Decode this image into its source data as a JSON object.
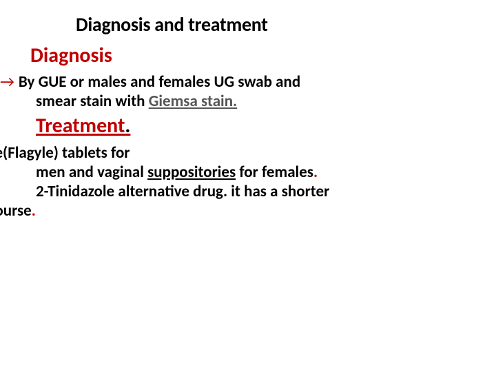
{
  "colors": {
    "accent_red": "#c00000",
    "text_black": "#000000",
    "muted_gray": "#555555",
    "background": "#ffffff"
  },
  "typography": {
    "title_fontsize": 28,
    "heading_fontsize": 30,
    "body_fontsize": 23,
    "font_family": "Calibri",
    "weight": 700
  },
  "title": "Diagnosis and treatment",
  "diagnosis": {
    "heading": "Diagnosis",
    "arrow": "→",
    "line1_pre": "By GUE  or males and females UG swab and",
    "line2_pre": "smear stain with ",
    "giemsa": "Giemsa stain."
  },
  "treatment": {
    "heading": "Treatment",
    "dot": ".",
    "line1": "dazole(Flagyle) tablets for",
    "line2_pre": "men and vaginal ",
    "suppositories": "suppositories",
    "line2_post": " for females",
    "line3": "2-Tinidazole alternative drug. it has a  shorter",
    "line4": "ent course",
    "reddot": "."
  }
}
